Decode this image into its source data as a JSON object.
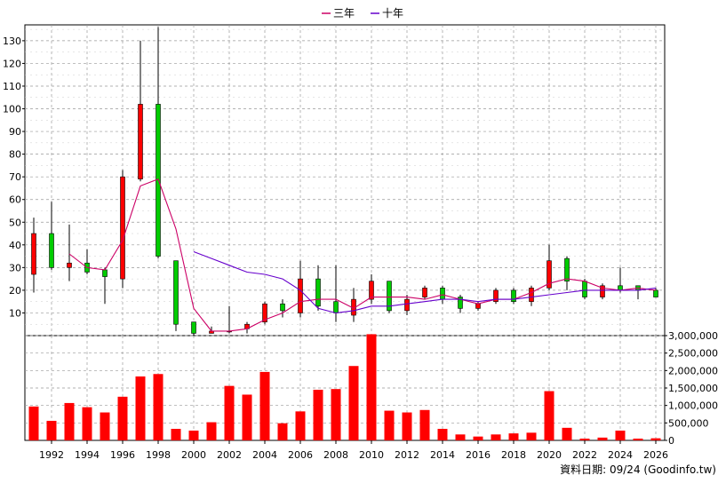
{
  "legend": [
    {
      "name": "三年",
      "color": "#cc0066"
    },
    {
      "name": "十年",
      "color": "#6600cc"
    }
  ],
  "footer": "資料日期: 09/24 (Goodinfo.tw)",
  "chart_data": [
    {
      "type": "candlestick",
      "ylim": [
        0,
        137
      ],
      "y_ticks": [
        10,
        20,
        30,
        40,
        50,
        60,
        70,
        80,
        90,
        100,
        110,
        120,
        130
      ],
      "x_tick_labels": [
        "1992",
        "1994",
        "1996",
        "1998",
        "2000",
        "2002",
        "2004",
        "2006",
        "2008",
        "2010",
        "2012",
        "2014",
        "2016",
        "2018",
        "2020",
        "2022",
        "2024",
        "2026"
      ],
      "candles": [
        {
          "year": 1991,
          "open": 27,
          "close": 45,
          "high": 52,
          "low": 19
        },
        {
          "year": 1992,
          "open": 45,
          "close": 30,
          "high": 59,
          "low": 29
        },
        {
          "year": 1993,
          "open": 30,
          "close": 32,
          "high": 49,
          "low": 24
        },
        {
          "year": 1994,
          "open": 32,
          "close": 28,
          "high": 38,
          "low": 27
        },
        {
          "year": 1995,
          "open": 29,
          "close": 26,
          "high": 30,
          "low": 14
        },
        {
          "year": 1996,
          "open": 25,
          "close": 70,
          "high": 73,
          "low": 21
        },
        {
          "year": 1997,
          "open": 69,
          "close": 102,
          "high": 130,
          "low": 68
        },
        {
          "year": 1998,
          "open": 102,
          "close": 35,
          "high": 136,
          "low": 34
        },
        {
          "year": 1999,
          "open": 33,
          "close": 5,
          "high": 33,
          "low": 2
        },
        {
          "year": 2000,
          "open": 6,
          "close": 1,
          "high": 6,
          "low": 0
        },
        {
          "year": 2001,
          "open": 1,
          "close": 2,
          "high": 4,
          "low": 1
        },
        {
          "year": 2002,
          "open": 2,
          "close": 2,
          "high": 13,
          "low": 1
        },
        {
          "year": 2003,
          "open": 3,
          "close": 5,
          "high": 6,
          "low": 1
        },
        {
          "year": 2004,
          "open": 6,
          "close": 14,
          "high": 15,
          "low": 5
        },
        {
          "year": 2005,
          "open": 14,
          "close": 11,
          "high": 16,
          "low": 8
        },
        {
          "year": 2006,
          "open": 10,
          "close": 25,
          "high": 33,
          "low": 8
        },
        {
          "year": 2007,
          "open": 25,
          "close": 13,
          "high": 31,
          "low": 11
        },
        {
          "year": 2008,
          "open": 15,
          "close": 10,
          "high": 31,
          "low": 6
        },
        {
          "year": 2009,
          "open": 9,
          "close": 16,
          "high": 21,
          "low": 6
        },
        {
          "year": 2010,
          "open": 16,
          "close": 24,
          "high": 27,
          "low": 14
        },
        {
          "year": 2011,
          "open": 24,
          "close": 11,
          "high": 24,
          "low": 10
        },
        {
          "year": 2012,
          "open": 11,
          "close": 16,
          "high": 18,
          "low": 9
        },
        {
          "year": 2013,
          "open": 17,
          "close": 21,
          "high": 22,
          "low": 16
        },
        {
          "year": 2014,
          "open": 21,
          "close": 16,
          "high": 22,
          "low": 14
        },
        {
          "year": 2015,
          "open": 17,
          "close": 12,
          "high": 18,
          "low": 10
        },
        {
          "year": 2016,
          "open": 12,
          "close": 14,
          "high": 15,
          "low": 11
        },
        {
          "year": 2017,
          "open": 15,
          "close": 20,
          "high": 21,
          "low": 14
        },
        {
          "year": 2018,
          "open": 20,
          "close": 15,
          "high": 21,
          "low": 14
        },
        {
          "year": 2019,
          "open": 15,
          "close": 21,
          "high": 22,
          "low": 13
        },
        {
          "year": 2020,
          "open": 21,
          "close": 33,
          "high": 40,
          "low": 20
        },
        {
          "year": 2021,
          "open": 34,
          "close": 24,
          "high": 35,
          "low": 20
        },
        {
          "year": 2022,
          "open": 24,
          "close": 17,
          "high": 25,
          "low": 16
        },
        {
          "year": 2023,
          "open": 17,
          "close": 22,
          "high": 23,
          "low": 16
        },
        {
          "year": 2024,
          "open": 22,
          "close": 20,
          "high": 30,
          "low": 19
        },
        {
          "year": 2025,
          "open": 22,
          "close": 20,
          "high": 22,
          "low": 16
        },
        {
          "year": 2026,
          "open": 20,
          "close": 17,
          "high": 21,
          "low": 17
        }
      ],
      "series": [
        {
          "name": "三年",
          "color": "#cc0066",
          "points": [
            [
              1993,
              36
            ],
            [
              1994,
              30
            ],
            [
              1995,
              29
            ],
            [
              1996,
              42
            ],
            [
              1997,
              66
            ],
            [
              1998,
              69
            ],
            [
              1999,
              47
            ],
            [
              2000,
              12
            ],
            [
              2001,
              2
            ],
            [
              2002,
              2
            ],
            [
              2003,
              3
            ],
            [
              2004,
              7
            ],
            [
              2005,
              10
            ],
            [
              2006,
              15
            ],
            [
              2007,
              16
            ],
            [
              2008,
              16
            ],
            [
              2009,
              12
            ],
            [
              2010,
              17
            ],
            [
              2011,
              17
            ],
            [
              2012,
              17
            ],
            [
              2013,
              16
            ],
            [
              2014,
              18
            ],
            [
              2015,
              16
            ],
            [
              2016,
              14
            ],
            [
              2017,
              16
            ],
            [
              2018,
              16
            ],
            [
              2019,
              19
            ],
            [
              2020,
              23
            ],
            [
              2021,
              25
            ],
            [
              2022,
              24
            ],
            [
              2023,
              21
            ],
            [
              2024,
              20
            ],
            [
              2025,
              21
            ],
            [
              2026,
              20
            ]
          ]
        },
        {
          "name": "十年",
          "color": "#6600cc",
          "points": [
            [
              2000,
              37
            ],
            [
              2001,
              34
            ],
            [
              2002,
              31
            ],
            [
              2003,
              28
            ],
            [
              2004,
              27
            ],
            [
              2005,
              25
            ],
            [
              2006,
              20
            ],
            [
              2007,
              12
            ],
            [
              2008,
              10
            ],
            [
              2009,
              11
            ],
            [
              2010,
              13
            ],
            [
              2011,
              13
            ],
            [
              2012,
              14
            ],
            [
              2013,
              15
            ],
            [
              2014,
              16
            ],
            [
              2015,
              16
            ],
            [
              2016,
              15
            ],
            [
              2017,
              16
            ],
            [
              2018,
              16
            ],
            [
              2019,
              17
            ],
            [
              2020,
              18
            ],
            [
              2021,
              19
            ],
            [
              2022,
              20
            ],
            [
              2023,
              20
            ],
            [
              2024,
              20
            ],
            [
              2025,
              20
            ],
            [
              2026,
              21
            ]
          ]
        }
      ]
    },
    {
      "type": "bar",
      "ylim": [
        0,
        3000000
      ],
      "y_tick_labels": [
        "0",
        "500,000",
        "1,000,000",
        "1,500,000",
        "2,000,000",
        "2,500,000",
        "3,000,000"
      ],
      "y_ticks": [
        0,
        500000,
        1000000,
        1500000,
        2000000,
        2500000,
        3000000
      ],
      "color": "#ff0000",
      "years": [
        1991,
        1992,
        1993,
        1994,
        1995,
        1996,
        1997,
        1998,
        1999,
        2000,
        2001,
        2002,
        2003,
        2004,
        2005,
        2006,
        2007,
        2008,
        2009,
        2010,
        2011,
        2012,
        2013,
        2014,
        2015,
        2016,
        2017,
        2018,
        2019,
        2020,
        2021,
        2022,
        2023,
        2024,
        2025,
        2026
      ],
      "values": [
        970000,
        560000,
        1070000,
        950000,
        800000,
        1250000,
        1830000,
        1900000,
        330000,
        280000,
        520000,
        1560000,
        1310000,
        1960000,
        490000,
        830000,
        1450000,
        1470000,
        2130000,
        3040000,
        850000,
        800000,
        870000,
        330000,
        170000,
        110000,
        170000,
        200000,
        220000,
        1410000,
        360000,
        50000,
        80000,
        280000,
        50000,
        60000
      ]
    }
  ]
}
